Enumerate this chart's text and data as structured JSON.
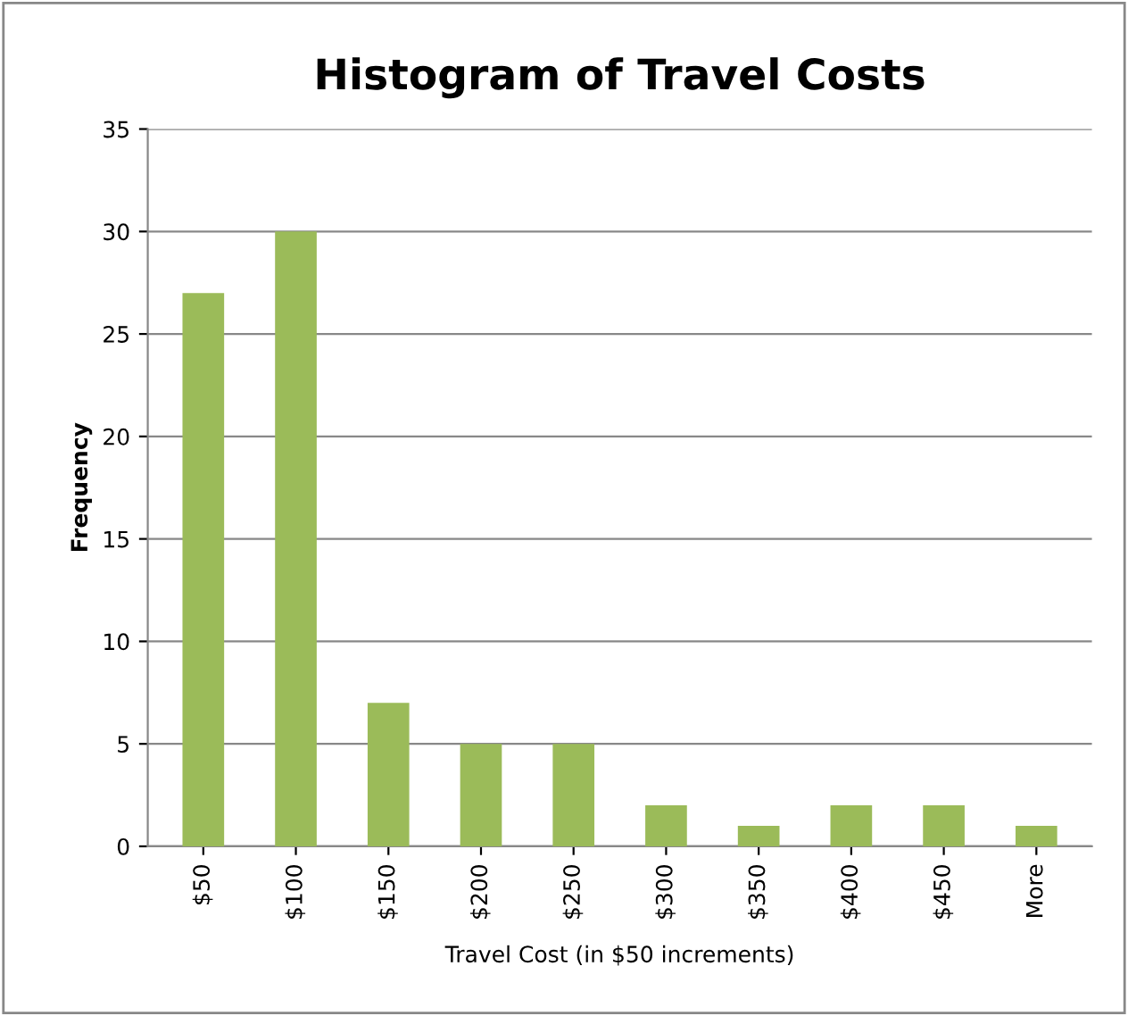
{
  "chart_data": {
    "type": "bar",
    "title": "Histogram of Travel Costs",
    "xlabel": "Travel Cost (in $50 increments)",
    "ylabel": "Frequency",
    "categories": [
      "$50",
      "$100",
      "$150",
      "$200",
      "$250",
      "$300",
      "$350",
      "$400",
      "$450",
      "More"
    ],
    "values": [
      27,
      30,
      7,
      5,
      5,
      2,
      1,
      2,
      2,
      1
    ],
    "color": "#9bbb59",
    "ylim": [
      0,
      35
    ],
    "yticks": [
      0,
      5,
      10,
      15,
      20,
      25,
      30,
      35
    ],
    "grid": "y",
    "legend": false
  }
}
